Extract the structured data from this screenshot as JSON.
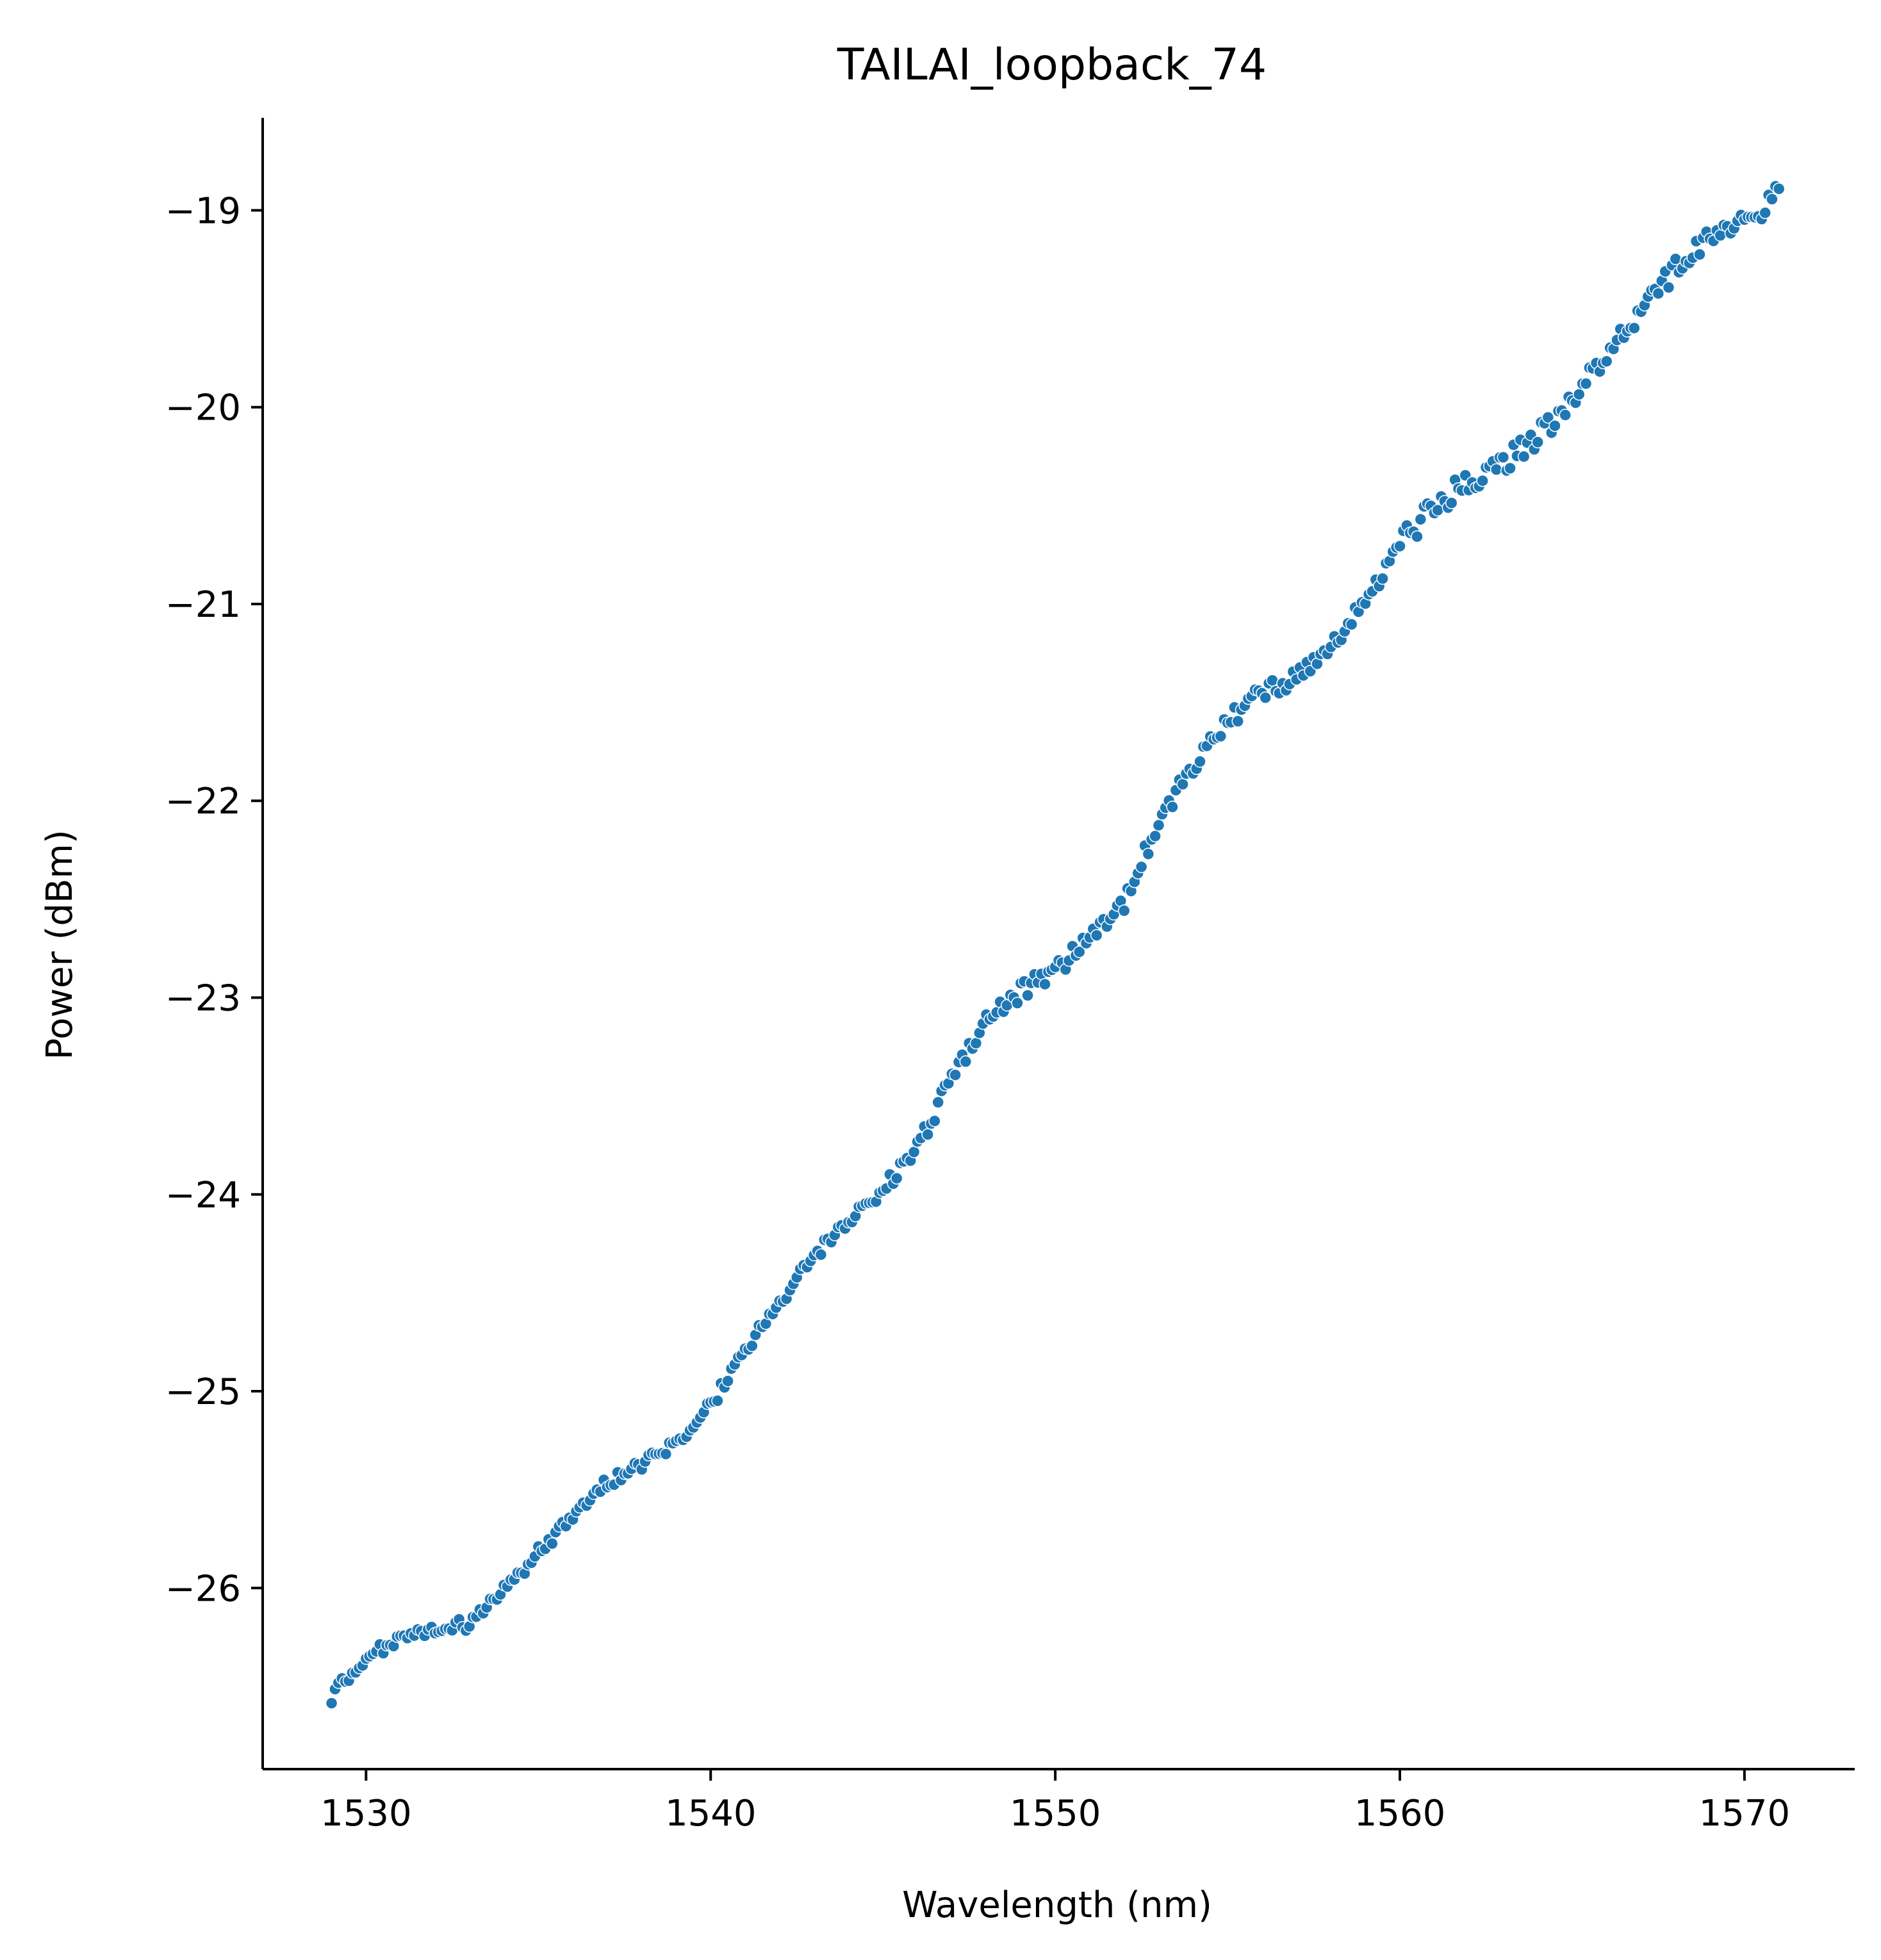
{
  "chart_data": {
    "type": "scatter",
    "title": "TAILAI_loopback_74",
    "xlabel": "Wavelength (nm)",
    "ylabel": "Power (dBm)",
    "xlim": [
      1527,
      1573.2
    ],
    "ylim": [
      -26.92,
      -18.53
    ],
    "xticks": [
      1530,
      1540,
      1550,
      1560,
      1570
    ],
    "xtick_labels": [
      "1530",
      "1540",
      "1550",
      "1560",
      "1570"
    ],
    "yticks": [
      -19,
      -20,
      -21,
      -22,
      -23,
      -24,
      -25,
      -26
    ],
    "ytick_labels": [
      "−19",
      "−20",
      "−21",
      "−22",
      "−23",
      "−24",
      "−25",
      "−26"
    ],
    "grid": false,
    "legend": "none",
    "marker_color": "#1f77b4",
    "x_start": 1529.0,
    "x_step": 0.1,
    "y_anchors": [
      [
        1529.0,
        -26.55
      ],
      [
        1529.5,
        -26.45
      ],
      [
        1530.0,
        -26.35
      ],
      [
        1531.0,
        -26.27
      ],
      [
        1532.0,
        -26.22
      ],
      [
        1533.0,
        -26.18
      ],
      [
        1534.0,
        -26.0
      ],
      [
        1535.0,
        -25.82
      ],
      [
        1536.0,
        -25.62
      ],
      [
        1537.0,
        -25.47
      ],
      [
        1538.0,
        -25.38
      ],
      [
        1539.0,
        -25.27
      ],
      [
        1540.0,
        -25.07
      ],
      [
        1541.0,
        -24.8
      ],
      [
        1542.0,
        -24.55
      ],
      [
        1543.0,
        -24.32
      ],
      [
        1544.0,
        -24.13
      ],
      [
        1545.0,
        -23.97
      ],
      [
        1546.0,
        -23.75
      ],
      [
        1547.0,
        -23.42
      ],
      [
        1548.0,
        -23.12
      ],
      [
        1549.0,
        -22.97
      ],
      [
        1550.0,
        -22.86
      ],
      [
        1551.0,
        -22.7
      ],
      [
        1552.0,
        -22.52
      ],
      [
        1553.0,
        -22.1
      ],
      [
        1554.0,
        -21.82
      ],
      [
        1555.0,
        -21.6
      ],
      [
        1556.0,
        -21.45
      ],
      [
        1557.0,
        -21.37
      ],
      [
        1558.0,
        -21.2
      ],
      [
        1559.0,
        -21.0
      ],
      [
        1560.0,
        -20.7
      ],
      [
        1561.0,
        -20.5
      ],
      [
        1562.0,
        -20.38
      ],
      [
        1563.0,
        -20.28
      ],
      [
        1564.0,
        -20.15
      ],
      [
        1565.0,
        -19.95
      ],
      [
        1566.0,
        -19.75
      ],
      [
        1567.0,
        -19.5
      ],
      [
        1568.0,
        -19.3
      ],
      [
        1569.0,
        -19.15
      ],
      [
        1570.0,
        -19.07
      ],
      [
        1571.0,
        -18.92
      ]
    ]
  }
}
